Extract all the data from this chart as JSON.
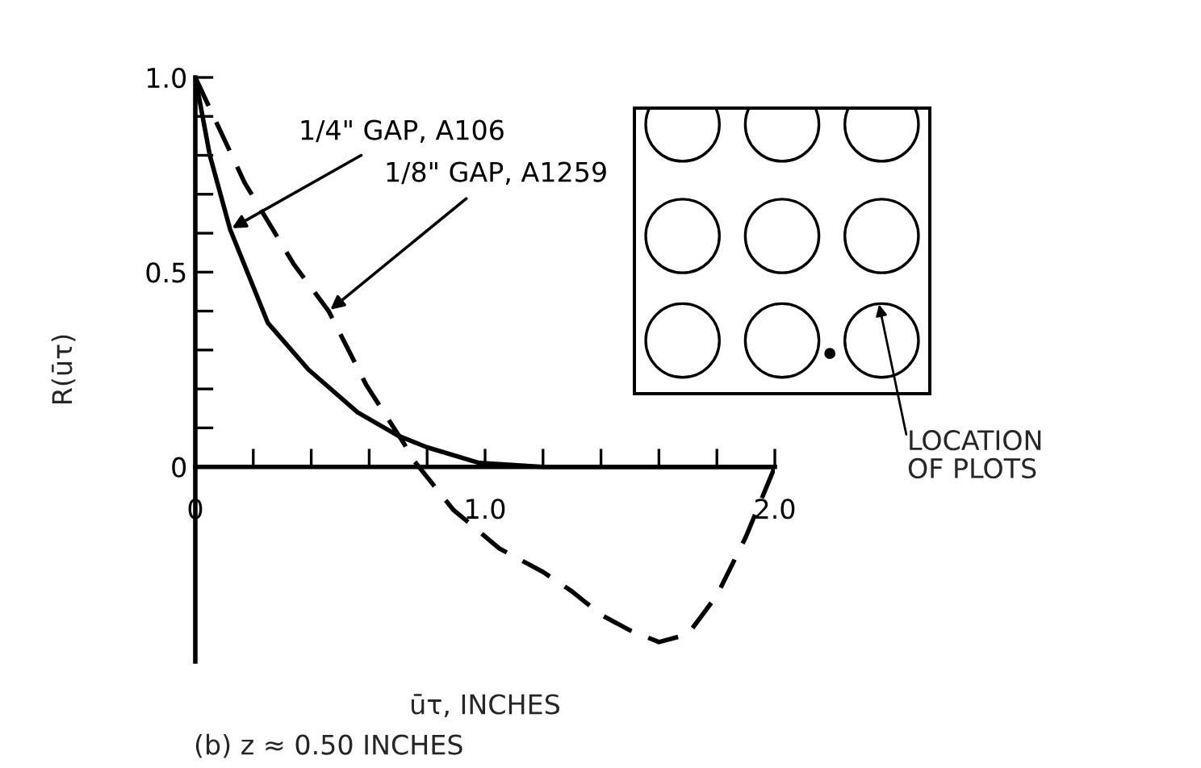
{
  "chart_data": {
    "type": "line",
    "xlabel": "ūτ, INCHES",
    "ylabel": "R(ūτ)",
    "xlim": [
      0,
      2.0
    ],
    "ylim": [
      -0.5,
      1.0
    ],
    "xticks": [
      0,
      {
        "value": 0.2,
        "label": null
      },
      {
        "value": 0.4,
        "label": null
      },
      {
        "value": 0.6,
        "label": null
      },
      {
        "value": 0.8,
        "label": null
      },
      {
        "value": 1.0,
        "label": "1.0"
      },
      {
        "value": 1.2,
        "label": null
      },
      {
        "value": 1.4,
        "label": null
      },
      {
        "value": 1.6,
        "label": null
      },
      {
        "value": 1.8,
        "label": null
      },
      {
        "value": 2.0,
        "label": "2.0"
      }
    ],
    "yticks": [
      0,
      {
        "value": 0.1,
        "label": null
      },
      {
        "value": 0.2,
        "label": null
      },
      {
        "value": 0.3,
        "label": null
      },
      {
        "value": 0.4,
        "label": null
      },
      0.5,
      {
        "value": 0.6,
        "label": null
      },
      {
        "value": 0.7,
        "label": null
      },
      {
        "value": 0.8,
        "label": null
      },
      {
        "value": 0.9,
        "label": null
      },
      {
        "value": 1.0,
        "label": "1.0"
      }
    ],
    "series": [
      {
        "color": "#000000",
        "line_style": "solid",
        "x": [
          0,
          0.05,
          0.12,
          0.25,
          0.39,
          0.56,
          0.7,
          0.8,
          0.98,
          1.2,
          1.5,
          2.0
        ],
        "values": [
          1.0,
          0.8,
          0.61,
          0.37,
          0.25,
          0.14,
          0.08,
          0.05,
          0.01,
          0.0,
          0.0,
          0.0
        ]
      },
      {
        "color": "#000000",
        "line_style": "dashed",
        "x": [
          0,
          0.17,
          0.34,
          0.46,
          0.59,
          0.72,
          0.75,
          0.89,
          1.05,
          1.2,
          1.3,
          1.4,
          1.5,
          1.6,
          1.7,
          1.8,
          1.9,
          2.0
        ],
        "values": [
          1.0,
          0.73,
          0.52,
          0.4,
          0.21,
          0.06,
          0.02,
          -0.11,
          -0.21,
          -0.27,
          -0.32,
          -0.38,
          -0.42,
          -0.45,
          -0.43,
          -0.33,
          -0.18,
          0.0
        ]
      }
    ],
    "annotations": [
      {
        "text": "1/4\" GAP, A106",
        "x": 0.12,
        "y": 0.61
      },
      {
        "text": "1/8\" GAP, A1259",
        "x": 0.46,
        "y": 0.4
      },
      "LOCATION\nOF PLOTS",
      "(b) z ≈ 0.50 INCHES"
    ],
    "grid": false,
    "legend": false
  }
}
